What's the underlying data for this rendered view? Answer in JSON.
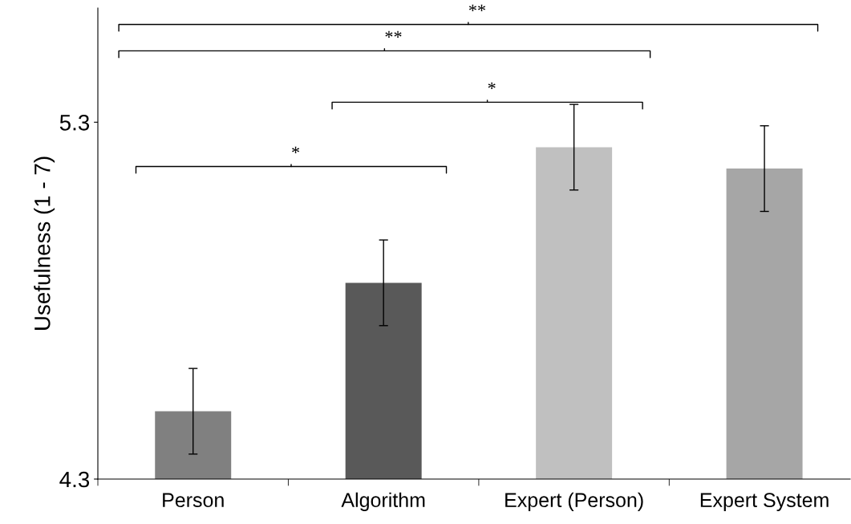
{
  "chart_data": {
    "type": "bar",
    "ylabel": "Usefulness (1 - 7)",
    "categories": [
      "Person",
      "Algorithm",
      "Expert (Person)",
      "Expert System"
    ],
    "values": [
      4.49,
      4.85,
      5.23,
      5.17
    ],
    "colors": [
      "#808080",
      "#595959",
      "#c0c0c0",
      "#a6a6a6"
    ],
    "errors": [
      0.12,
      0.12,
      0.12,
      0.12
    ],
    "ylim": [
      4.3,
      5.62
    ],
    "yticks": [
      4.3,
      5.3
    ],
    "grid": false,
    "legend": false,
    "annotations": [
      "*",
      "*",
      "**",
      "**"
    ]
  }
}
